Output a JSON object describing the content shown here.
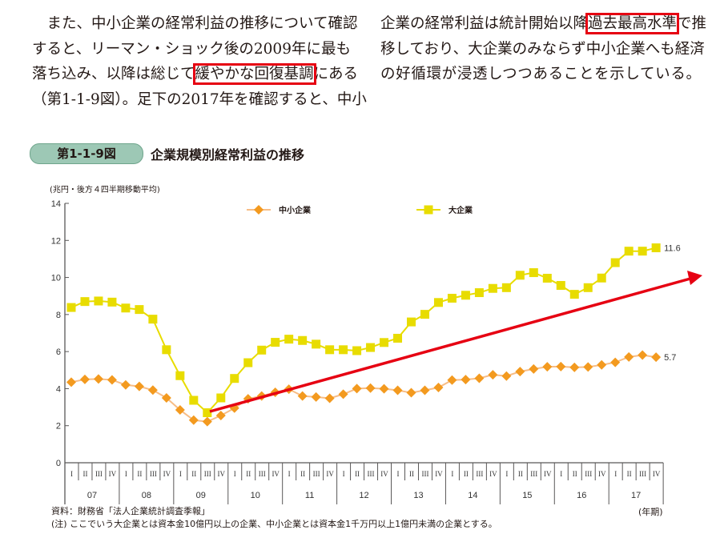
{
  "text": {
    "left": [
      {
        "pre": "　また、中小企業の経常利益の推移について確認",
        "hl": "",
        "post": ""
      },
      {
        "pre": "すると、リーマン・ショック後の2009年に最も",
        "hl": "",
        "post": ""
      },
      {
        "pre": "落ち込み、以降は総じて",
        "hl": "緩やかな回復基調",
        "post": "にある"
      },
      {
        "pre": "（第1-1-9図）。足下の2017年を確認すると、中小",
        "hl": "",
        "post": ""
      }
    ],
    "right": [
      {
        "pre": "企業の経常利益は統計開始以降",
        "hl": "過去最高水準",
        "post": "で推"
      },
      {
        "pre": "移しており、大企業のみならず中小企業へも経済",
        "hl": "",
        "post": ""
      },
      {
        "pre": "の好循環が浸透しつつあることを示している。",
        "hl": "",
        "post": ""
      }
    ]
  },
  "figure": {
    "badge": "第1-1-9図",
    "title": "企業規模別経常利益の推移",
    "unit": "(兆円・後方４四半期移動平均)",
    "source": "資料：財務省「法人企業統計調査季報」",
    "note": "(注) ここでいう大企業とは資本金10億円以上の企業、中小企業とは資本金1千万円以上1億円未満の企業とする。",
    "period_label": "(年期)"
  },
  "colors": {
    "sme": "#f39a1f",
    "sme_line": "#f7bd86",
    "large": "#e8dc00",
    "arrow": "#e60012",
    "axis": "#595757"
  },
  "chart_data": {
    "type": "line",
    "title": "企業規模別経常利益の推移",
    "ylabel": "(兆円・後方４四半期移動平均)",
    "xlabel": "(年期)",
    "ylim": [
      0,
      14
    ],
    "yticks": [
      0,
      2,
      4,
      6,
      8,
      10,
      12,
      14
    ],
    "years": [
      "07",
      "08",
      "09",
      "10",
      "11",
      "12",
      "13",
      "14",
      "15",
      "16",
      "17"
    ],
    "quarters": [
      "I",
      "II",
      "III",
      "IV"
    ],
    "legend": "top",
    "series": [
      {
        "name": "中小企業",
        "marker": "diamond",
        "end_label": "5.7",
        "values": [
          4.35,
          4.5,
          4.52,
          4.47,
          4.2,
          4.12,
          3.92,
          3.5,
          2.85,
          2.3,
          2.22,
          2.55,
          2.95,
          3.45,
          3.6,
          3.8,
          3.97,
          3.6,
          3.55,
          3.48,
          3.7,
          4.0,
          4.03,
          3.99,
          3.91,
          3.78,
          3.91,
          4.06,
          4.46,
          4.49,
          4.56,
          4.75,
          4.68,
          4.92,
          5.06,
          5.18,
          5.19,
          5.15,
          5.17,
          5.28,
          5.42,
          5.71,
          5.81,
          5.7
        ]
      },
      {
        "name": "大企業",
        "marker": "square",
        "end_label": "11.6",
        "values": [
          8.38,
          8.7,
          8.73,
          8.67,
          8.35,
          8.27,
          7.75,
          6.1,
          4.7,
          3.37,
          2.7,
          3.5,
          4.55,
          5.4,
          6.08,
          6.5,
          6.67,
          6.6,
          6.4,
          6.1,
          6.1,
          6.05,
          6.22,
          6.49,
          6.72,
          7.6,
          8.01,
          8.65,
          8.88,
          9.04,
          9.18,
          9.41,
          9.45,
          10.12,
          10.26,
          9.96,
          9.57,
          9.09,
          9.45,
          9.97,
          10.8,
          11.42,
          11.42,
          11.6
        ]
      }
    ],
    "annotation": "upward trend arrow from 2009 III"
  }
}
